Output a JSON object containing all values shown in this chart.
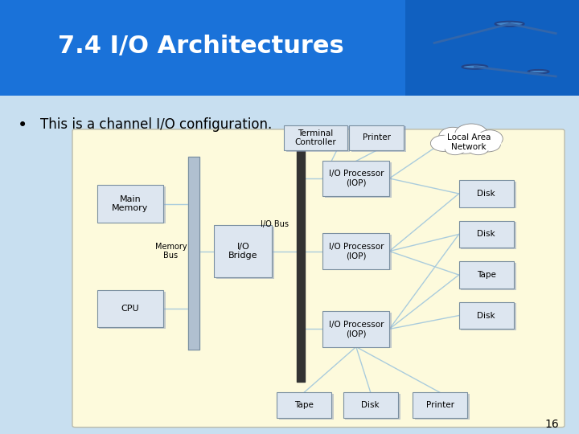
{
  "title": "7.4 I/O Architectures",
  "title_color": "#ffffff",
  "title_bg_left": "#1a72d9",
  "title_bg_right": "#1a72d9",
  "slide_bg": "#c8dff0",
  "bullet_text": "This is a channel I/O configuration.",
  "diagram_bg": "#fdfadc",
  "page_number": "16",
  "box_face_color": "#dde6f0",
  "box_edge_color": "#7a8fa0",
  "line_color": "#aaccdd",
  "bus_color": "#444444",
  "mem_bus_color": "#b0bece"
}
